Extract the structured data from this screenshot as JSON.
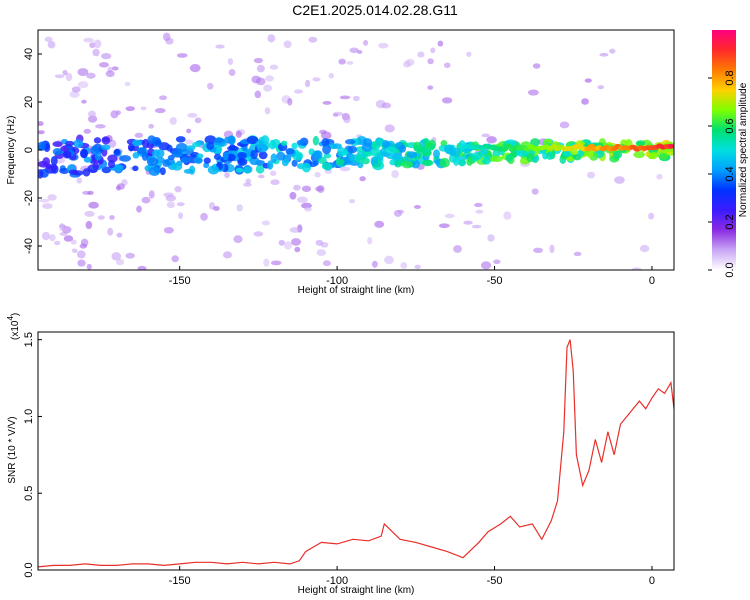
{
  "title": "C2E1.2025.014.02.28.G11",
  "colors": {
    "snr_line": "#e8302a",
    "axis": "#000000",
    "colormap": [
      "#ffffff",
      "#c9a6f5",
      "#8a2be2",
      "#3a1cff",
      "#0033ff",
      "#00a0ff",
      "#00e0e0",
      "#00e070",
      "#7fff00",
      "#ffd000",
      "#ff7a00",
      "#ff2a2a",
      "#ff007f"
    ]
  },
  "chart_data": [
    {
      "type": "heatmap",
      "name": "spectrogram",
      "xlabel": "Height of straight line (km)",
      "ylabel": "Frequency (Hz)",
      "xlim": [
        -195,
        7
      ],
      "ylim": [
        -50,
        50
      ],
      "xticks": [
        -150,
        -100,
        -50,
        0
      ],
      "yticks": [
        40,
        20,
        0,
        -20,
        -40
      ],
      "ytick_labels": [
        "40",
        "20",
        "0",
        "-20",
        "-40"
      ],
      "colorbar": {
        "label": "Normalized spectral amplitude",
        "range": [
          0,
          1
        ],
        "ticks": [
          0.0,
          0.2,
          0.4,
          0.6,
          0.8
        ],
        "tick_labels": [
          "0.0",
          "0.2",
          "0.4",
          "0.6",
          "0.8"
        ]
      },
      "features": {
        "dominant_band": {
          "x_range": [
            -195,
            7
          ],
          "center_freq": [
            -3,
            0
          ],
          "half_width": [
            8,
            3
          ]
        },
        "strong_segment": {
          "x_range": [
            -60,
            7
          ],
          "freq": 1,
          "peak_amplitude": 1.0
        },
        "weak_scatter_region": {
          "x_range": [
            -195,
            -110
          ],
          "freq_range": [
            -50,
            48
          ]
        }
      }
    },
    {
      "type": "line",
      "name": "snr",
      "xlabel": "Height of straight line (km)",
      "ylabel": "SNR (10 * V/V)",
      "multiplier_label": "(x10",
      "multiplier_exponent": "4",
      "xlim": [
        -195,
        7
      ],
      "ylim": [
        0,
        1.55
      ],
      "xticks": [
        -150,
        -100,
        -50,
        0
      ],
      "yticks": [
        0.0,
        0.5,
        1.0,
        1.5
      ],
      "ytick_labels": [
        "0.0",
        "0.5",
        "1.0",
        "1.5"
      ],
      "series": [
        {
          "x": [
            -195,
            -190,
            -185,
            -180,
            -175,
            -170,
            -165,
            -160,
            -155,
            -150,
            -145,
            -140,
            -135,
            -130,
            -125,
            -120,
            -115,
            -112,
            -110,
            -105,
            -100,
            -95,
            -90,
            -86,
            -85,
            -80,
            -75,
            -70,
            -65,
            -60,
            -55,
            -52,
            -48,
            -45,
            -42,
            -38,
            -35,
            -32,
            -30,
            -28,
            -27,
            -26,
            -25,
            -24,
            -22,
            -20,
            -18,
            -16,
            -14,
            -12,
            -10,
            -8,
            -6,
            -4,
            -2,
            0,
            2,
            4,
            6,
            7
          ],
          "y": [
            0.02,
            0.03,
            0.03,
            0.04,
            0.03,
            0.03,
            0.04,
            0.04,
            0.03,
            0.04,
            0.05,
            0.05,
            0.04,
            0.05,
            0.04,
            0.05,
            0.04,
            0.06,
            0.12,
            0.18,
            0.17,
            0.2,
            0.19,
            0.22,
            0.3,
            0.2,
            0.18,
            0.15,
            0.12,
            0.08,
            0.18,
            0.25,
            0.3,
            0.35,
            0.28,
            0.3,
            0.2,
            0.32,
            0.45,
            0.9,
            1.45,
            1.5,
            1.3,
            0.75,
            0.55,
            0.65,
            0.85,
            0.7,
            0.9,
            0.75,
            0.95,
            1.0,
            1.05,
            1.1,
            1.05,
            1.12,
            1.18,
            1.15,
            1.22,
            1.05
          ]
        }
      ]
    }
  ]
}
